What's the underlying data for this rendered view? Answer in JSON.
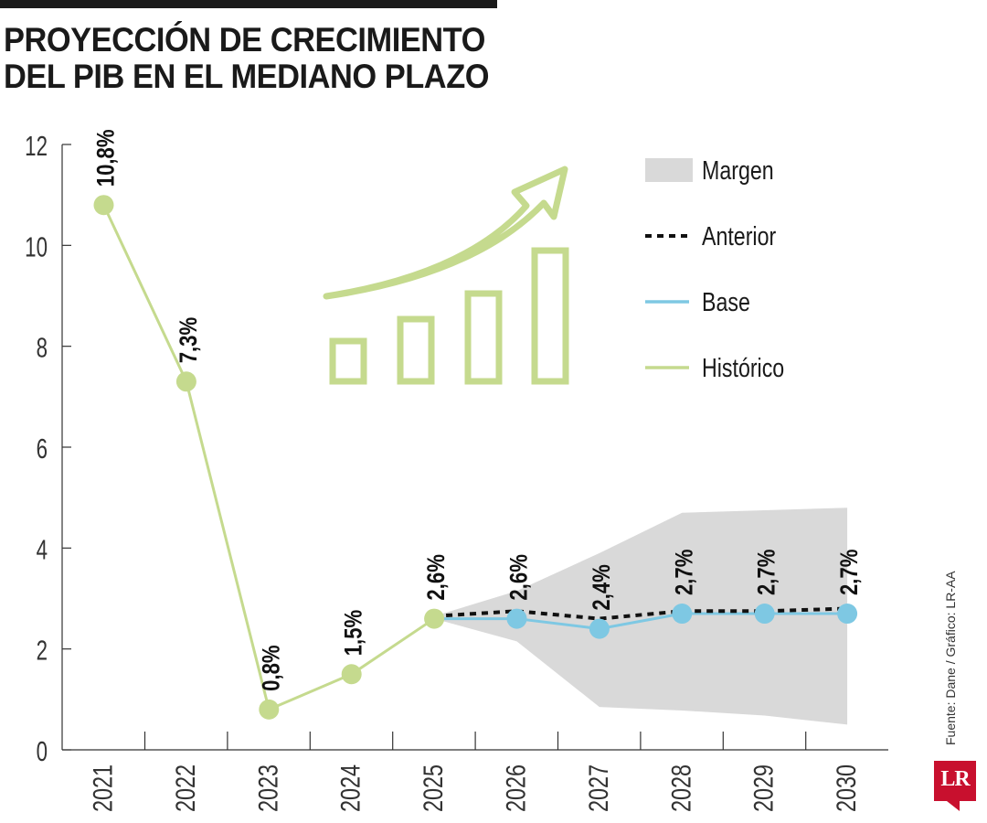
{
  "header": {
    "title_line1": "PROYECCIÓN DE CRECIMIENTO",
    "title_line2": "DEL PIB EN EL MEDIANO PLAZO"
  },
  "credit": "Fuente: Dane / Gráfico: LR-AA",
  "logo": {
    "text": "LR",
    "color": "#c8102e"
  },
  "chart_data": {
    "type": "line",
    "title": "PROYECCIÓN DE CRECIMIENTO DEL PIB EN EL MEDIANO PLAZO",
    "xlabel": "",
    "ylabel": "",
    "ylim": [
      0,
      12
    ],
    "yticks": [
      0,
      2,
      4,
      6,
      8,
      10,
      12
    ],
    "categories": [
      "2021",
      "2022",
      "2023",
      "2024",
      "2025",
      "2026",
      "2027",
      "2028",
      "2029",
      "2030"
    ],
    "grid": false,
    "legend_position": "top-right",
    "legend": [
      {
        "label": "Margen",
        "style": "band",
        "color": "#d9d9d9"
      },
      {
        "label": "Anterior",
        "style": "dotted",
        "color": "#111111"
      },
      {
        "label": "Base",
        "style": "line",
        "color": "#7ec8e3"
      },
      {
        "label": "Histórico",
        "style": "line",
        "color": "#c5da8e"
      }
    ],
    "series": [
      {
        "name": "Histórico",
        "color": "#c5da8e",
        "x": [
          "2021",
          "2022",
          "2023",
          "2024",
          "2025"
        ],
        "values": [
          10.8,
          7.3,
          0.8,
          1.5,
          2.6
        ],
        "labels": [
          "10,8%",
          "7,3%",
          "0,8%",
          "1,5%",
          "2,6%"
        ]
      },
      {
        "name": "Base",
        "color": "#7ec8e3",
        "x": [
          "2025",
          "2026",
          "2027",
          "2028",
          "2029",
          "2030"
        ],
        "values": [
          2.6,
          2.6,
          2.4,
          2.7,
          2.7,
          2.7
        ],
        "labels": [
          "",
          "2,6%",
          "2,4%",
          "2,7%",
          "2,7%",
          "2,7%"
        ]
      },
      {
        "name": "Anterior",
        "color": "#111111",
        "x": [
          "2025",
          "2026",
          "2027",
          "2028",
          "2029",
          "2030"
        ],
        "values": [
          2.65,
          2.75,
          2.6,
          2.75,
          2.75,
          2.8
        ]
      },
      {
        "name": "Margen",
        "color": "#d9d9d9",
        "x": [
          "2025",
          "2026",
          "2027",
          "2028",
          "2029",
          "2030"
        ],
        "upper": [
          2.65,
          3.15,
          3.9,
          4.7,
          4.75,
          4.8
        ],
        "lower": [
          2.6,
          2.15,
          0.85,
          0.78,
          0.68,
          0.5
        ]
      }
    ]
  }
}
